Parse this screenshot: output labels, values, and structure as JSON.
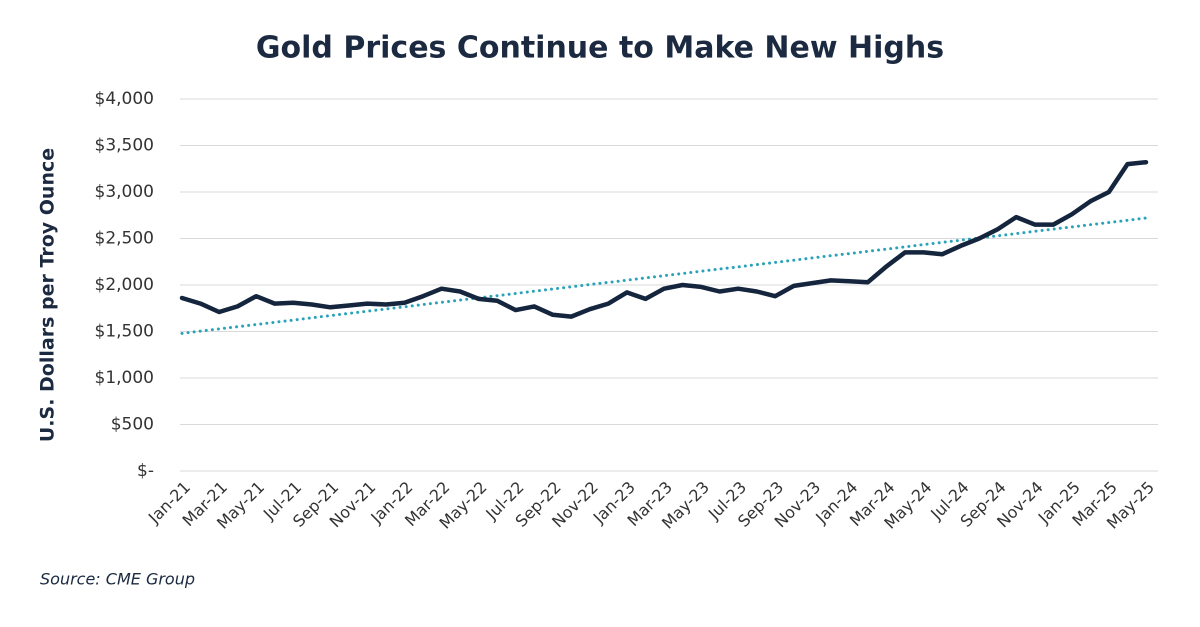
{
  "chart_data": {
    "type": "line",
    "title": "Gold Prices Continue to Make New Highs",
    "ylabel": "U.S. Dollars per Troy Ounce",
    "source": "Source: CME Group",
    "categories": [
      "Jan-21",
      null,
      "Mar-21",
      null,
      "May-21",
      null,
      "Jul-21",
      null,
      "Sep-21",
      null,
      "Nov-21",
      null,
      "Jan-22",
      null,
      "Mar-22",
      null,
      "May-22",
      null,
      "Jul-22",
      null,
      "Sep-22",
      null,
      "Nov-22",
      null,
      "Jan-23",
      null,
      "Mar-23",
      null,
      "May-23",
      null,
      "Jul-23",
      null,
      "Sep-23",
      null,
      "Nov-23",
      null,
      "Jan-24",
      null,
      "Mar-24",
      null,
      "May-24",
      null,
      "Jul-24",
      null,
      "Sep-24",
      null,
      "Nov-24",
      null,
      "Jan-25",
      null,
      "Mar-25",
      null,
      "May-25"
    ],
    "series": [
      {
        "color": "#14253d",
        "style": "solid",
        "values": [
          1860,
          1800,
          1710,
          1770,
          1880,
          1800,
          1810,
          1790,
          1760,
          1780,
          1800,
          1790,
          1810,
          1880,
          1960,
          1930,
          1850,
          1830,
          1730,
          1770,
          1680,
          1660,
          1740,
          1800,
          1920,
          1850,
          1960,
          2000,
          1980,
          1930,
          1960,
          1930,
          1880,
          1990,
          2020,
          2050,
          2040,
          2030,
          2200,
          2350,
          2350,
          2330,
          2420,
          2500,
          2600,
          2730,
          2650,
          2650,
          2760,
          2900,
          3000,
          3300,
          3320
        ]
      },
      {
        "color": "#2aa3b8",
        "style": "dotted",
        "values": [
          1480,
          1504,
          1528,
          1552,
          1575,
          1599,
          1623,
          1647,
          1671,
          1695,
          1718,
          1742,
          1766,
          1790,
          1814,
          1838,
          1862,
          1885,
          1909,
          1933,
          1957,
          1981,
          2005,
          2028,
          2052,
          2076,
          2100,
          2124,
          2148,
          2172,
          2195,
          2219,
          2243,
          2267,
          2291,
          2315,
          2338,
          2362,
          2386,
          2410,
          2434,
          2458,
          2482,
          2505,
          2529,
          2553,
          2577,
          2601,
          2625,
          2648,
          2672,
          2696,
          2720
        ]
      }
    ],
    "ylim": [
      0,
      4000
    ],
    "yticks": [
      {
        "value": 0,
        "label": "$-"
      },
      {
        "value": 500,
        "label": "$500"
      },
      {
        "value": 1000,
        "label": "$1,000"
      },
      {
        "value": 1500,
        "label": "$1,500"
      },
      {
        "value": 2000,
        "label": "$2,000"
      },
      {
        "value": 2500,
        "label": "$2,500"
      },
      {
        "value": 3000,
        "label": "$3,000"
      },
      {
        "value": 3500,
        "label": "$3,500"
      },
      {
        "value": 4000,
        "label": "$4,000"
      }
    ],
    "grid": true
  }
}
